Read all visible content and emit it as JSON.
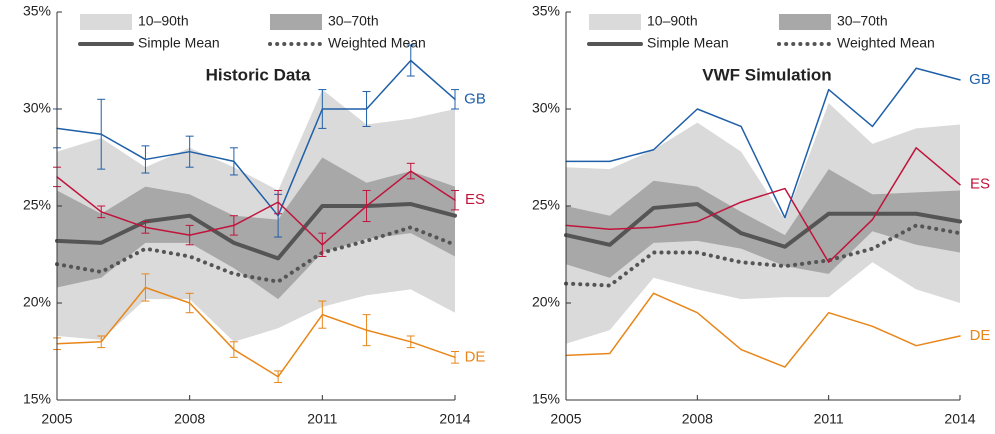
{
  "chart_data": [
    {
      "type": "line",
      "title": "Historic Data",
      "x": [
        2005,
        2006,
        2007,
        2008,
        2009,
        2010,
        2011,
        2012,
        2013,
        2014
      ],
      "xlim": [
        2005,
        2014
      ],
      "xticks": [
        2005,
        2008,
        2011,
        2014
      ],
      "ylim": [
        15,
        35
      ],
      "yticks": [
        {
          "value": 15,
          "label": "15%"
        },
        {
          "value": 20,
          "label": "20%"
        },
        {
          "value": 25,
          "label": "25%"
        },
        {
          "value": 30,
          "label": "30%"
        },
        {
          "value": 35,
          "label": "35%"
        }
      ],
      "series": [
        {
          "name": "10–90th",
          "color": "#dadada",
          "label_at": "legend",
          "lower": [
            18.3,
            18.1,
            20.2,
            20.2,
            18.0,
            18.7,
            19.8,
            20.4,
            20.7,
            19.5
          ],
          "upper": [
            27.8,
            28.5,
            27.0,
            28.0,
            27.0,
            25.8,
            31.0,
            29.2,
            29.5,
            30.0
          ]
        },
        {
          "name": "30–70th",
          "color": "#a8a8a8",
          "label_at": "legend",
          "lower": [
            20.8,
            21.3,
            23.1,
            23.1,
            21.8,
            20.2,
            22.6,
            23.3,
            23.6,
            22.4
          ],
          "upper": [
            25.8,
            24.6,
            26.0,
            25.6,
            24.5,
            24.3,
            27.5,
            26.2,
            26.8,
            26.0
          ]
        },
        {
          "name": "Simple Mean",
          "color": "#555555",
          "style": "solid",
          "label_at": "legend",
          "values": [
            23.2,
            23.1,
            24.2,
            24.5,
            23.1,
            22.3,
            25.0,
            25.0,
            25.1,
            24.5
          ]
        },
        {
          "name": "Weighted Mean",
          "color": "#555555",
          "style": "dotted",
          "label_at": "legend",
          "values": [
            22.0,
            21.6,
            22.8,
            22.4,
            21.5,
            21.1,
            22.6,
            23.2,
            23.9,
            23.0
          ]
        },
        {
          "name": "GB",
          "color": "#1f5fa8",
          "label_at": "end",
          "values": [
            29.0,
            28.7,
            27.4,
            27.8,
            27.3,
            24.5,
            30.0,
            30.0,
            32.5,
            30.5
          ],
          "errors": [
            1.0,
            1.8,
            0.7,
            0.8,
            0.7,
            1.1,
            1.0,
            0.9,
            0.8,
            0.5
          ]
        },
        {
          "name": "ES",
          "color": "#c0143c",
          "label_at": "end",
          "values": [
            26.5,
            24.7,
            23.9,
            23.5,
            24.0,
            25.2,
            23.0,
            25.0,
            26.8,
            25.3
          ],
          "errors": [
            0.5,
            0.3,
            0.3,
            0.5,
            0.5,
            0.6,
            0.6,
            0.8,
            0.4,
            0.5
          ]
        },
        {
          "name": "DE",
          "color": "#e8861a",
          "label_at": "end",
          "values": [
            17.9,
            18.0,
            20.8,
            20.0,
            17.6,
            16.2,
            19.4,
            18.6,
            18.0,
            17.2
          ],
          "errors": [
            0.3,
            0.3,
            0.7,
            0.5,
            0.4,
            0.3,
            0.7,
            0.8,
            0.3,
            0.3
          ]
        }
      ]
    },
    {
      "type": "line",
      "title": "VWF Simulation",
      "x": [
        2005,
        2006,
        2007,
        2008,
        2009,
        2010,
        2011,
        2012,
        2013,
        2014
      ],
      "xlim": [
        2005,
        2014
      ],
      "xticks": [
        2005,
        2008,
        2011,
        2014
      ],
      "ylim": [
        15,
        35
      ],
      "yticks": [
        {
          "value": 15,
          "label": "15%"
        },
        {
          "value": 20,
          "label": "20%"
        },
        {
          "value": 25,
          "label": "25%"
        },
        {
          "value": 30,
          "label": "30%"
        },
        {
          "value": 35,
          "label": "35%"
        }
      ],
      "series": [
        {
          "name": "10–90th",
          "color": "#dadada",
          "label_at": "legend",
          "lower": [
            17.9,
            18.6,
            21.3,
            20.7,
            20.2,
            20.3,
            20.3,
            22.1,
            20.7,
            20.0
          ],
          "upper": [
            27.0,
            26.9,
            27.9,
            29.3,
            27.8,
            24.3,
            30.3,
            28.2,
            29.0,
            29.2
          ]
        },
        {
          "name": "30–70th",
          "color": "#a8a8a8",
          "label_at": "legend",
          "lower": [
            22.0,
            21.3,
            23.1,
            23.2,
            22.8,
            21.9,
            21.5,
            23.7,
            23.0,
            22.6
          ],
          "upper": [
            25.0,
            24.5,
            26.3,
            26.0,
            24.7,
            23.5,
            26.9,
            25.6,
            25.7,
            25.8
          ]
        },
        {
          "name": "Simple Mean",
          "color": "#555555",
          "style": "solid",
          "label_at": "legend",
          "values": [
            23.5,
            23.0,
            24.9,
            25.1,
            23.6,
            22.9,
            24.6,
            24.6,
            24.6,
            24.2
          ]
        },
        {
          "name": "Weighted Mean",
          "color": "#555555",
          "style": "dotted",
          "label_at": "legend",
          "values": [
            21.0,
            20.9,
            22.6,
            22.6,
            22.1,
            21.9,
            22.2,
            22.8,
            24.0,
            23.6
          ]
        },
        {
          "name": "GB",
          "color": "#1f5fa8",
          "label_at": "end",
          "values": [
            27.3,
            27.3,
            27.9,
            30.0,
            29.1,
            24.4,
            31.0,
            29.1,
            32.1,
            31.5
          ]
        },
        {
          "name": "ES",
          "color": "#c0143c",
          "label_at": "end",
          "values": [
            24.0,
            23.8,
            23.9,
            24.2,
            25.2,
            25.9,
            22.1,
            24.3,
            28.0,
            26.1
          ]
        },
        {
          "name": "DE",
          "color": "#e8861a",
          "label_at": "end",
          "values": [
            17.3,
            17.4,
            20.5,
            19.5,
            17.6,
            16.7,
            19.5,
            18.8,
            17.8,
            18.3
          ]
        }
      ]
    }
  ]
}
